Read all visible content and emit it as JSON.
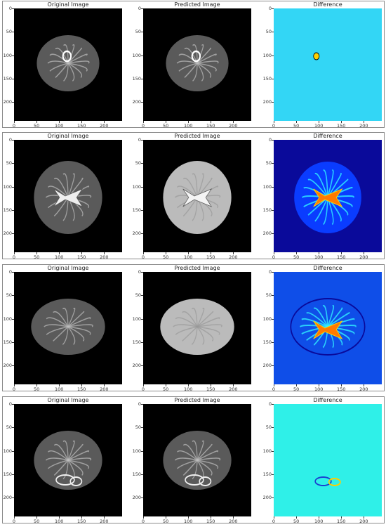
{
  "titles": {
    "original": "Original Image",
    "predicted": "Predicted Image",
    "difference": "Difference"
  },
  "y_ticks": [
    "0",
    "50",
    "100",
    "150",
    "200"
  ],
  "x_ticks": [
    "0",
    "50",
    "100",
    "150",
    "200"
  ],
  "rows": [
    {
      "difference_colormap": "jet",
      "difference_background": "#33d6f5"
    },
    {
      "difference_colormap": "jet",
      "difference_background": "#0a0a9a"
    },
    {
      "difference_colormap": "jet",
      "difference_background": "#0f4ee8"
    },
    {
      "difference_colormap": "jet",
      "difference_background": "#2ff0e8"
    }
  ]
}
